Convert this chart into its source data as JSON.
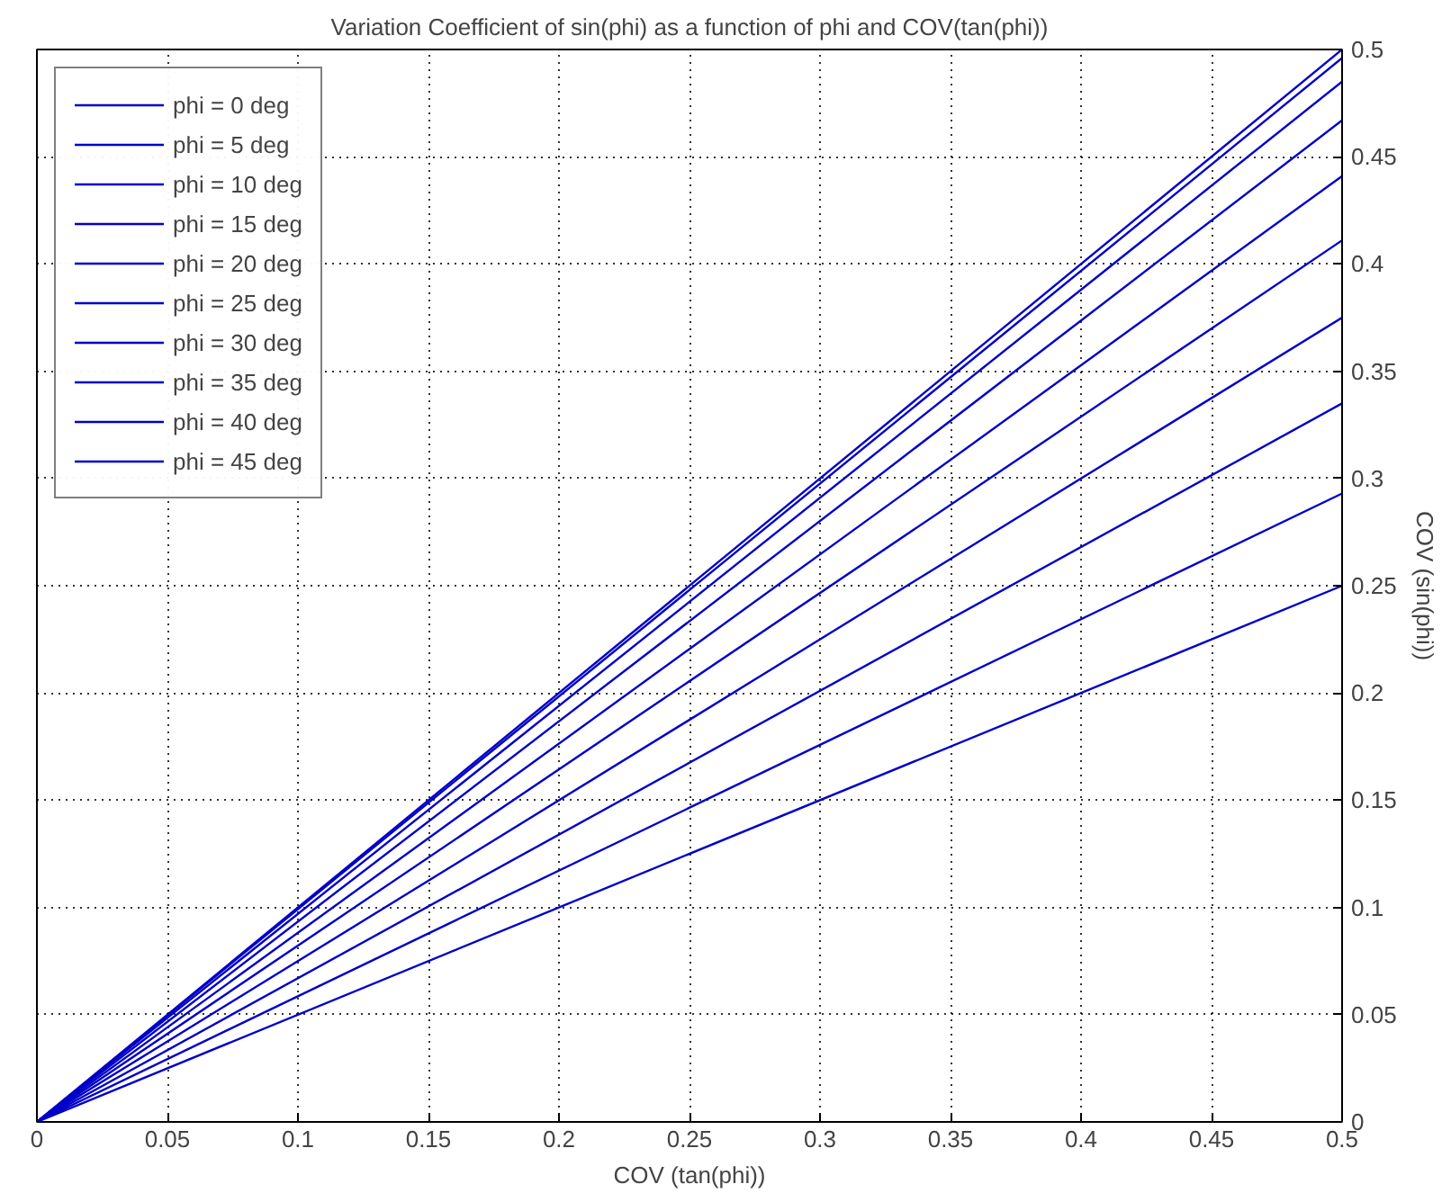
{
  "chart_data": {
    "type": "line",
    "title": "Variation Coefficient of sin(phi) as a function of phi and COV(tan(phi))",
    "xlabel": "COV (tan(phi))",
    "ylabel": "COV (sin(phi))",
    "x": [
      0,
      0.5
    ],
    "series": [
      {
        "name": "phi = 0 deg",
        "color": "#0000c8",
        "values": [
          0,
          0.5
        ]
      },
      {
        "name": "phi = 5 deg",
        "color": "#0000c8",
        "values": [
          0,
          0.496
        ]
      },
      {
        "name": "phi = 10 deg",
        "color": "#0000c8",
        "values": [
          0,
          0.485
        ]
      },
      {
        "name": "phi = 15 deg",
        "color": "#0000c8",
        "values": [
          0,
          0.467
        ]
      },
      {
        "name": "phi = 20 deg",
        "color": "#0000c8",
        "values": [
          0,
          0.441
        ]
      },
      {
        "name": "phi = 25 deg",
        "color": "#0000c8",
        "values": [
          0,
          0.411
        ]
      },
      {
        "name": "phi = 30 deg",
        "color": "#0000c8",
        "values": [
          0,
          0.375
        ]
      },
      {
        "name": "phi = 35 deg",
        "color": "#0000c8",
        "values": [
          0,
          0.335
        ]
      },
      {
        "name": "phi = 40 deg",
        "color": "#0000c8",
        "values": [
          0,
          0.293
        ]
      },
      {
        "name": "phi = 45 deg",
        "color": "#0000c8",
        "values": [
          0,
          0.25
        ]
      }
    ],
    "xlim": [
      0,
      0.5
    ],
    "ylim": [
      0,
      0.5
    ],
    "xticks": [
      0,
      0.05,
      0.1,
      0.15,
      0.2,
      0.25,
      0.3,
      0.35,
      0.4,
      0.45,
      0.5
    ],
    "yticks": [
      0,
      0.05,
      0.1,
      0.15,
      0.2,
      0.25,
      0.3,
      0.35,
      0.4,
      0.45,
      0.5
    ],
    "grid": true,
    "legend": "top left",
    "marker": "none",
    "line_style": "solid"
  }
}
